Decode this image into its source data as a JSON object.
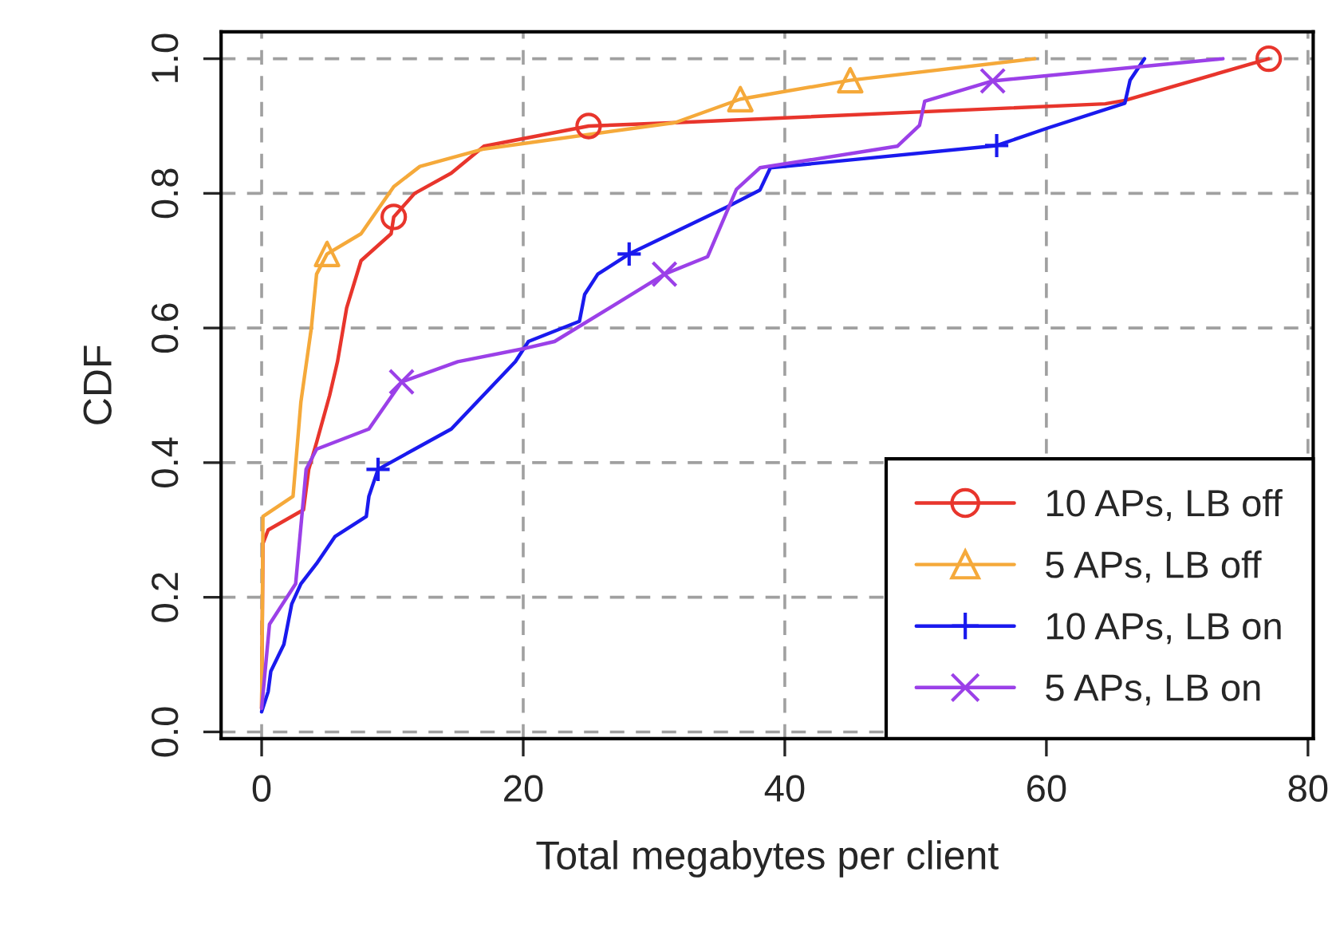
{
  "chart_data": {
    "type": "line",
    "xlabel": "Total megabytes per client",
    "ylabel": "CDF",
    "xlim": [
      -3.1,
      80.4
    ],
    "ylim": [
      -0.01,
      1.04
    ],
    "xticks": [
      0,
      20,
      40,
      60,
      80
    ],
    "yticks": [
      {
        "value": 0,
        "label": "0.0"
      },
      {
        "value": 0.2,
        "label": "0.2"
      },
      {
        "value": 0.4,
        "label": "0.4"
      },
      {
        "value": 0.6,
        "label": "0.6"
      },
      {
        "value": 0.8,
        "label": "0.8"
      },
      {
        "value": 1,
        "label": "1.0"
      }
    ],
    "grid": true,
    "legend": "bottom right",
    "line_style": "solid",
    "series": [
      {
        "name": "10 APs, LB off",
        "color": "#e8352c",
        "x": [
          0,
          0.1,
          0.5,
          3.2,
          3.6,
          4.2,
          5.2,
          5.8,
          6.5,
          7.6,
          9.9,
          10.1,
          11.7,
          14.5,
          17,
          25,
          31.6,
          64.5,
          66,
          77
        ],
        "values": [
          0.035,
          0.28,
          0.3,
          0.33,
          0.39,
          0.43,
          0.5,
          0.55,
          0.63,
          0.7,
          0.74,
          0.765,
          0.8,
          0.83,
          0.87,
          0.9,
          0.905,
          0.933,
          0.938,
          1.0
        ]
      },
      {
        "name": "5 APs, LB off",
        "color": "#f5a93a",
        "x": [
          0,
          0.1,
          2.4,
          3.0,
          3.8,
          4.2,
          5.0,
          7.6,
          10.1,
          12.1,
          17,
          31.6,
          36.6,
          45,
          59.1
        ],
        "values": [
          0.035,
          0.32,
          0.35,
          0.49,
          0.6,
          0.68,
          0.71,
          0.74,
          0.81,
          0.84,
          0.866,
          0.905,
          0.94,
          0.968,
          1.0
        ]
      },
      {
        "name": "10 APs, LB on",
        "color": "#1a1aee",
        "x": [
          0,
          0.5,
          0.7,
          1.7,
          2.3,
          3.0,
          4.2,
          5.6,
          8.0,
          8.2,
          8.9,
          11.7,
          14.5,
          19.4,
          20.4,
          24.3,
          24.7,
          25.7,
          28.1,
          35.6,
          38.1,
          38.9,
          56.2,
          60.1,
          66.0,
          66.4,
          67.5
        ],
        "values": [
          0.03,
          0.06,
          0.09,
          0.13,
          0.19,
          0.22,
          0.25,
          0.29,
          0.32,
          0.35,
          0.39,
          0.42,
          0.45,
          0.55,
          0.58,
          0.61,
          0.65,
          0.68,
          0.71,
          0.78,
          0.805,
          0.838,
          0.871,
          0.897,
          0.934,
          0.968,
          1.0
        ]
      },
      {
        "name": "5 APs, LB on",
        "color": "#9b40e8",
        "x": [
          0,
          0.6,
          2.6,
          3.4,
          4.2,
          8.2,
          10.7,
          15.0,
          20.2,
          22.4,
          28.3,
          30.8,
          34.1,
          36.3,
          38.1,
          48.6,
          50.3,
          50.7,
          55.9,
          73.5
        ],
        "values": [
          0.035,
          0.16,
          0.22,
          0.39,
          0.42,
          0.45,
          0.52,
          0.55,
          0.57,
          0.58,
          0.65,
          0.68,
          0.706,
          0.806,
          0.838,
          0.87,
          0.901,
          0.937,
          0.967,
          1.0
        ]
      },
      {
        "type": "scatter",
        "color": "#e8352c",
        "marker": "circle",
        "x": [
          10.1,
          25,
          77
        ],
        "values": [
          0.765,
          0.9,
          1.0
        ]
      },
      {
        "type": "scatter",
        "color": "#f5a93a",
        "marker": "triangle",
        "x": [
          5.0,
          36.6,
          45
        ],
        "values": [
          0.71,
          0.94,
          0.968
        ]
      },
      {
        "type": "scatter",
        "color": "#1a1aee",
        "marker": "plus",
        "x": [
          8.9,
          28.1,
          56.2
        ],
        "values": [
          0.39,
          0.71,
          0.871
        ]
      },
      {
        "type": "scatter",
        "color": "#9b40e8",
        "marker": "cross",
        "x": [
          10.7,
          30.8,
          55.9
        ],
        "values": [
          0.52,
          0.68,
          0.967
        ]
      }
    ]
  }
}
